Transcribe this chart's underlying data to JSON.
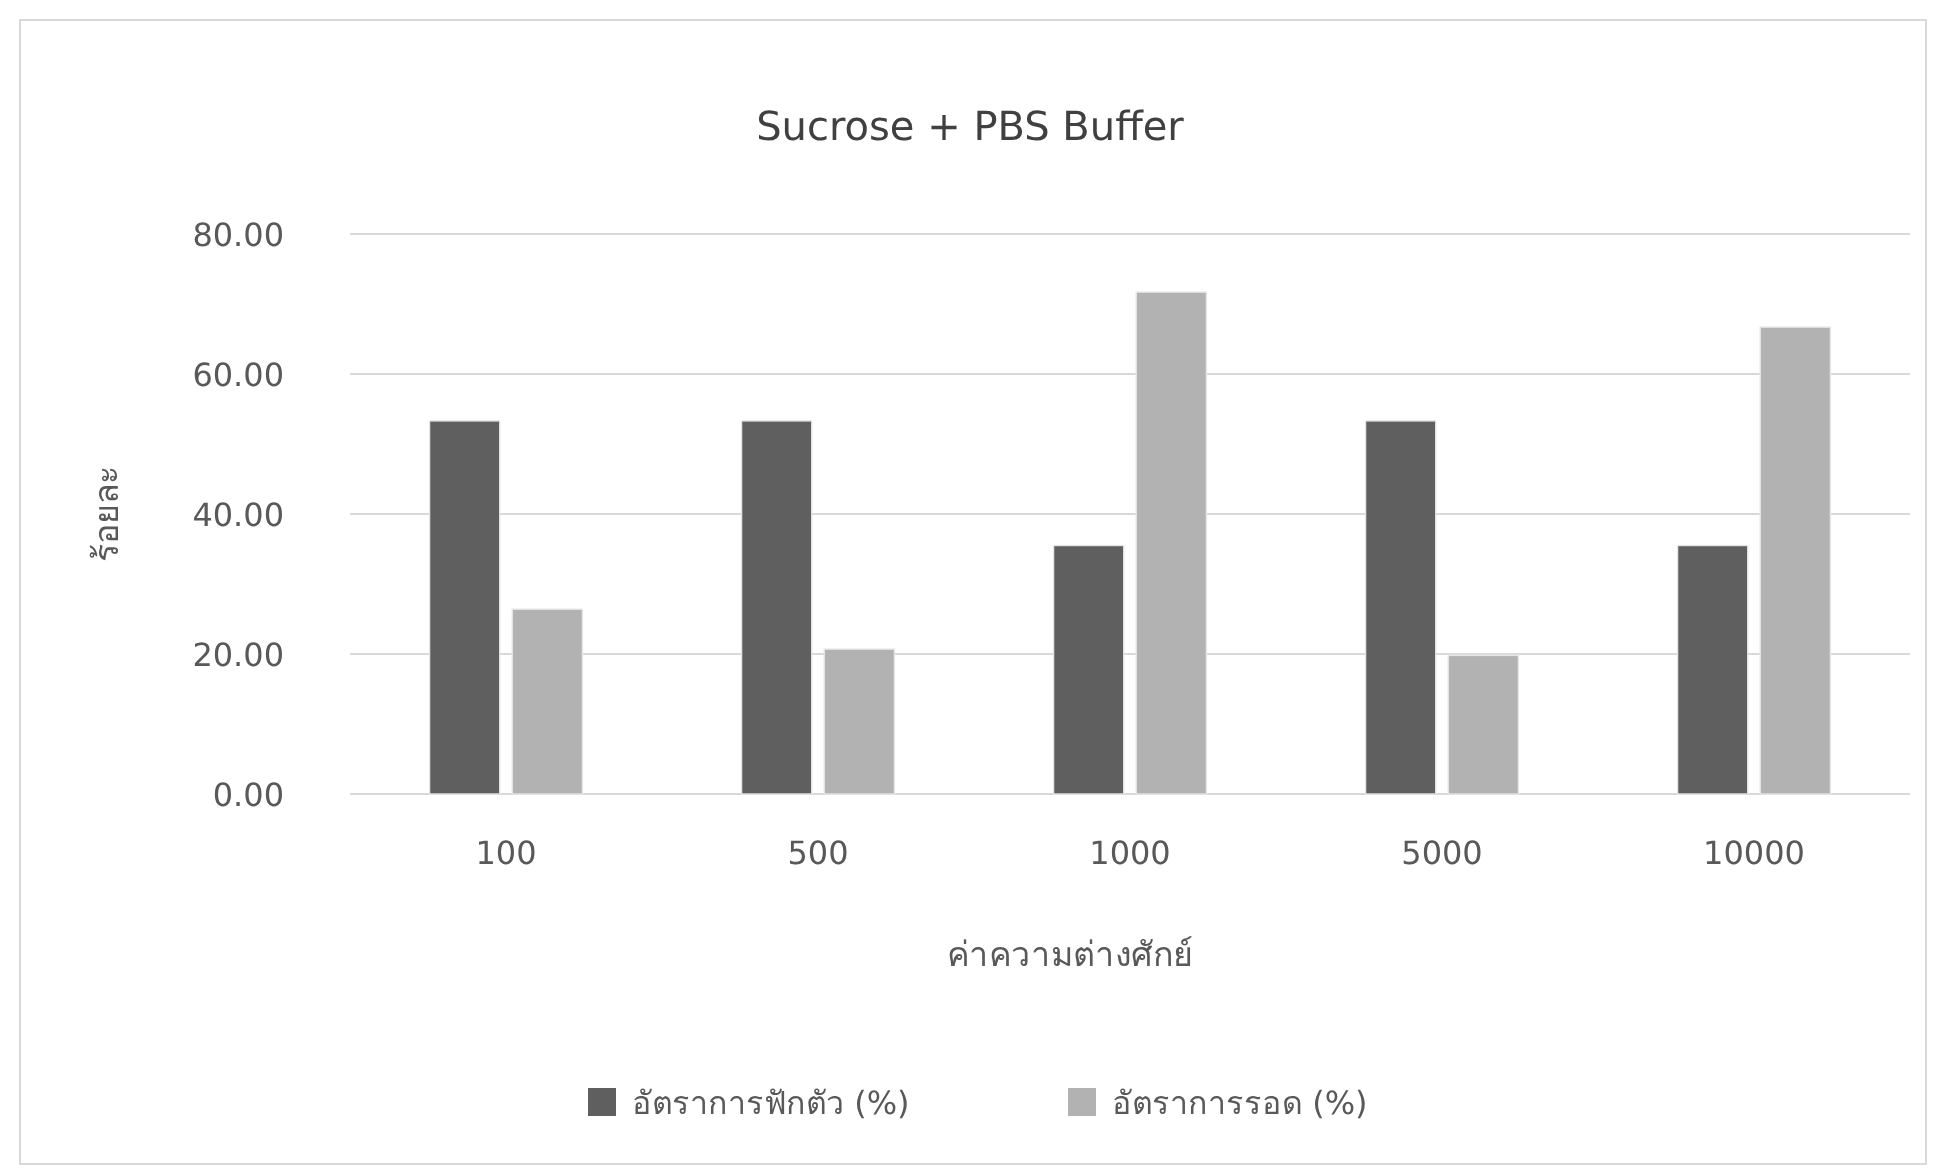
{
  "chart_data": {
    "type": "bar",
    "title": "Sucrose + PBS Buffer",
    "xlabel": "ค่าความต่างศักย์",
    "ylabel": "ร้อยละ",
    "categories": [
      "100",
      "500",
      "1000",
      "5000",
      "10000"
    ],
    "series": [
      {
        "name": "อัตราการฟักตัว (%)",
        "color": "#5f5f5f",
        "values": [
          53.3,
          53.3,
          35.5,
          53.3,
          35.5
        ]
      },
      {
        "name": "อัตราการรอด (%)",
        "color": "#b2b2b2",
        "values": [
          26.4,
          20.7,
          71.7,
          19.8,
          66.7
        ]
      }
    ],
    "ylim": [
      0,
      80
    ],
    "yticks": [
      {
        "value": 0,
        "label": "0.00"
      },
      {
        "value": 20,
        "label": "20.00"
      },
      {
        "value": 40,
        "label": "40.00"
      },
      {
        "value": 60,
        "label": "60.00"
      },
      {
        "value": 80,
        "label": "80.00"
      }
    ],
    "grid": "y",
    "legend": "bottom"
  }
}
